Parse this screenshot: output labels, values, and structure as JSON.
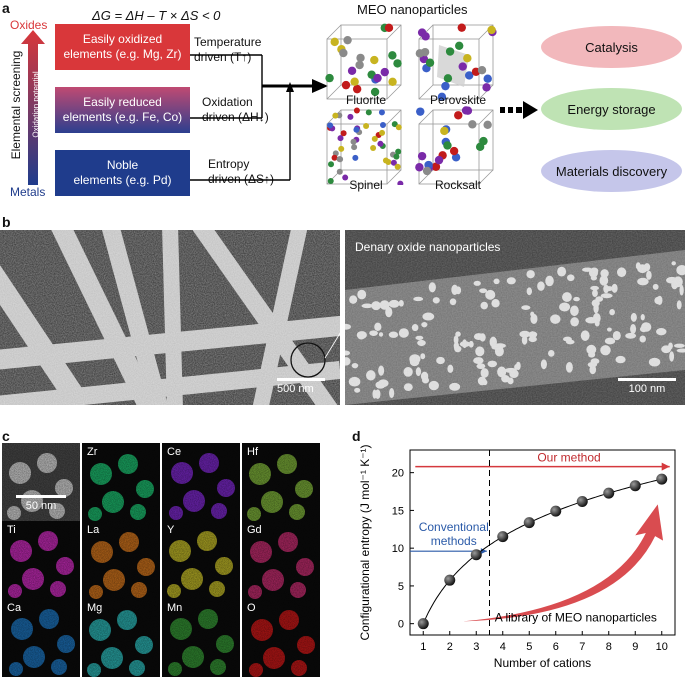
{
  "panel_a": {
    "letter": "a",
    "equation": "ΔG = ΔH – T × ΔS < 0",
    "oxides": "Oxides",
    "metals": "Metals",
    "screening": "Elemental screening",
    "oxidation_potential": "Oxidation potential",
    "box1": {
      "line1": "Easily oxidized",
      "line2": "elements (e.g. Mg, Zr)"
    },
    "box2": {
      "line1": "Easily reduced",
      "line2": "elements (e.g. Fe, Co)"
    },
    "box3": {
      "line1": "Noble",
      "line2": "elements (e.g. Pd)"
    },
    "driver1": {
      "line1": "Temperature",
      "line2": "driven (T↑)"
    },
    "driver2": {
      "line1": "Oxidation",
      "line2": "driven (ΔH↓)"
    },
    "driver3": {
      "line1": "Entropy",
      "line2": "driven (ΔS↑)"
    },
    "meo_title": "MEO nanoparticles",
    "structures": [
      "Fluorite",
      "Perovskite",
      "Spinel",
      "Rocksalt"
    ],
    "applications": [
      "Catalysis",
      "Energy storage",
      "Materials discovery"
    ],
    "colors": {
      "oxidized": "#d9373a",
      "reduced_top": "#c04a72",
      "reduced_bottom": "#2c3f8f",
      "noble": "#1f3c8c",
      "catalysis": "#f2b8bc",
      "energy": "#bfe3b4",
      "discovery": "#c5c6ea"
    }
  },
  "panel_b": {
    "letter": "b",
    "label": "Denary oxide nanoparticles",
    "scale_left": "500 nm",
    "scale_right": "100 nm"
  },
  "panel_c": {
    "letter": "c",
    "scale": "50 nm",
    "tiles": [
      {
        "label": "",
        "color": "#9a9a9a"
      },
      {
        "label": "Zr",
        "color": "#1fd17a"
      },
      {
        "label": "Ce",
        "color": "#8a2be2"
      },
      {
        "label": "Hf",
        "color": "#8cc63f"
      },
      {
        "label": "Ti",
        "color": "#e02fd0"
      },
      {
        "label": "La",
        "color": "#e8801f"
      },
      {
        "label": "Y",
        "color": "#d6cc2a"
      },
      {
        "label": "Gd",
        "color": "#d8307a"
      },
      {
        "label": "Ca",
        "color": "#1f7fd0"
      },
      {
        "label": "Mg",
        "color": "#2fc8c8"
      },
      {
        "label": "Mn",
        "color": "#3aa43a"
      },
      {
        "label": "O",
        "color": "#e01a1a"
      }
    ]
  },
  "panel_d": {
    "letter": "d",
    "our_method": "Our method",
    "conventional_line1": "Conventional",
    "conventional_line2": "methods",
    "library": "A library of MEO nanoparticles",
    "xlabel": "Number of cations",
    "ylabel": "Configurational entropy (J mol⁻¹ K⁻¹)"
  },
  "chart_data": {
    "type": "scatter",
    "x": [
      1,
      2,
      3,
      4,
      5,
      6,
      7,
      8,
      9,
      10
    ],
    "y": [
      0,
      5.76,
      9.13,
      11.53,
      13.38,
      14.9,
      16.18,
      17.29,
      18.27,
      19.14
    ],
    "xlim": [
      0.5,
      10.5
    ],
    "ylim": [
      -1.5,
      23
    ],
    "xticks": [
      "1",
      "2",
      "3",
      "4",
      "5",
      "6",
      "7",
      "8",
      "9",
      "10"
    ],
    "yticks": [
      "0",
      "5",
      "10",
      "15",
      "20"
    ],
    "xlabel": "Number of cations",
    "ylabel": "Configurational entropy (J mol⁻¹ K⁻¹)",
    "divider_x": 3.5
  }
}
